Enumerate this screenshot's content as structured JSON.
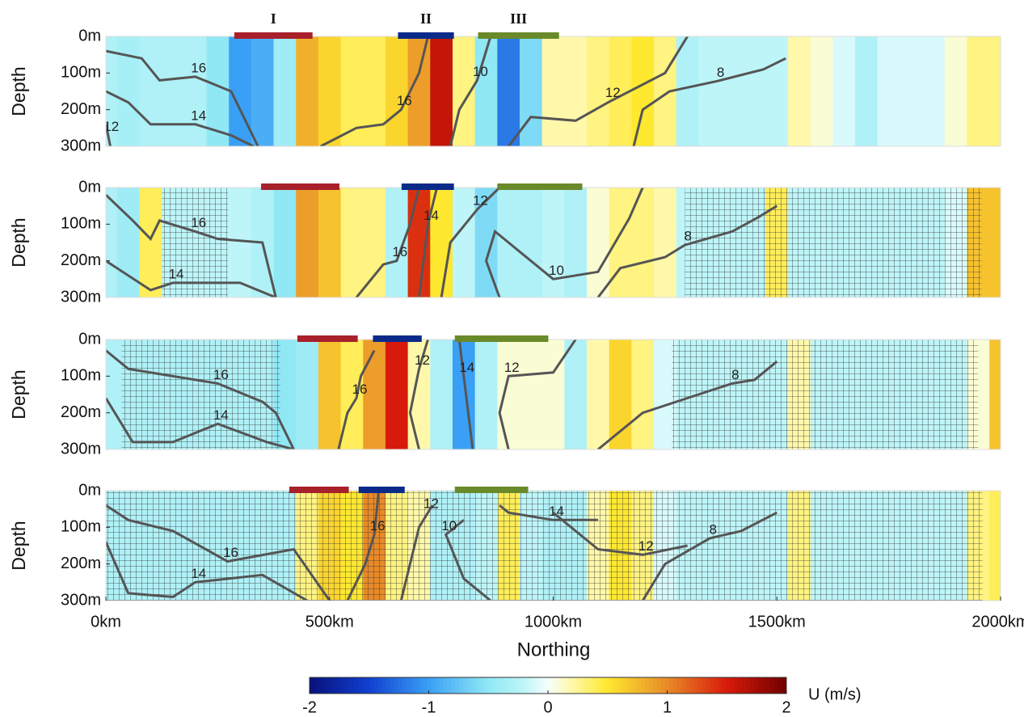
{
  "chart_data": {
    "type": "heatmap",
    "xlabel": "Northing",
    "ylabel": "Depth",
    "xlim": [
      0,
      2000
    ],
    "xticks": [
      {
        "value": 0,
        "label": "0km"
      },
      {
        "value": 500,
        "label": "500km"
      },
      {
        "value": 1000,
        "label": "1000km"
      },
      {
        "value": 1500,
        "label": "1500km"
      },
      {
        "value": 2000,
        "label": "2000km"
      }
    ],
    "ylim": [
      0,
      300
    ],
    "yticks": [
      {
        "value": 0,
        "label": "0m"
      },
      {
        "value": 100,
        "label": "100m"
      },
      {
        "value": 200,
        "label": "200m"
      },
      {
        "value": 300,
        "label": "300m"
      }
    ],
    "colorbar": {
      "label": "U (m/s)",
      "lim": [
        -2,
        2
      ],
      "ticks": [
        -2,
        -1,
        0,
        1,
        2
      ]
    },
    "columns_km": [
      0,
      50,
      100,
      150,
      200,
      250,
      300,
      350,
      400,
      450,
      500,
      550,
      600,
      650,
      700,
      750,
      800,
      850,
      900,
      950,
      1000,
      1050,
      1100,
      1150,
      1200,
      1250,
      1300,
      1350,
      1400,
      1450,
      1500,
      1550,
      1600,
      1650,
      1700,
      1750,
      1800,
      1850,
      1900,
      1950,
      2000
    ],
    "panels": [
      {
        "u": [
          -0.3,
          -0.35,
          -0.3,
          -0.3,
          -0.3,
          -0.5,
          -1.0,
          -0.9,
          -0.4,
          0.8,
          0.6,
          0.4,
          0.4,
          0.6,
          0.9,
          1.6,
          0.3,
          -0.5,
          -1.2,
          -0.6,
          0.2,
          0.2,
          0.3,
          0.4,
          0.5,
          0.3,
          -0.3,
          -0.2,
          -0.2,
          -0.2,
          -0.2,
          0.2,
          0.1,
          -0.1,
          -0.3,
          -0.1,
          -0.1,
          -0.1,
          0.1,
          0.3,
          0.3
        ],
        "hatched": [],
        "segments": [
          {
            "label": "I",
            "color": "#a8202a",
            "x": [
              287,
              462
            ]
          },
          {
            "label": "II",
            "color": "#0a2a8a",
            "x": [
              653,
              778
            ]
          },
          {
            "label": "III",
            "color": "#6a8a2a",
            "x": [
              832,
              1013
            ]
          }
        ],
        "contours": [
          {
            "level": 16,
            "x": [
              0,
              80,
              120,
              200,
              280,
              340
            ],
            "depth": [
              40,
              60,
              120,
              110,
              150,
              300
            ]
          },
          {
            "level": 14,
            "x": [
              0,
              50,
              100,
              200,
              280,
              330
            ],
            "depth": [
              150,
              180,
              240,
              240,
              270,
              300
            ]
          },
          {
            "level": 12,
            "x": [
              0,
              5,
              10
            ],
            "depth": [
              240,
              270,
              300
            ]
          },
          {
            "level": 16,
            "x": [
              480,
              560,
              620,
              660,
              700,
              720
            ],
            "depth": [
              300,
              250,
              240,
              200,
              100,
              0
            ]
          },
          {
            "level": 10,
            "x": [
              770,
              790,
              830,
              860
            ],
            "depth": [
              300,
              200,
              120,
              0
            ]
          },
          {
            "level": 12,
            "x": [
              900,
              950,
              1050,
              1126,
              1250,
              1300
            ],
            "depth": [
              300,
              220,
              230,
              178,
              100,
              0
            ]
          },
          {
            "level": 8,
            "x": [
              1180,
              1200,
              1260,
              1367,
              1470,
              1520
            ],
            "depth": [
              300,
              200,
              150,
              122,
              90,
              60
            ]
          }
        ]
      },
      {
        "u": [
          -0.3,
          -0.4,
          0.4,
          -0.2,
          -0.2,
          -0.2,
          -0.2,
          -0.3,
          -0.5,
          0.9,
          0.7,
          0.3,
          0.3,
          -0.3,
          1.4,
          0.5,
          -0.2,
          -0.6,
          -0.3,
          -0.3,
          -0.2,
          -0.3,
          0.1,
          0.3,
          0.3,
          0.2,
          -0.2,
          -0.2,
          -0.2,
          -0.2,
          0.4,
          -0.2,
          -0.2,
          -0.2,
          -0.2,
          -0.2,
          -0.2,
          -0.2,
          -0.1,
          0.7,
          0.7
        ],
        "hatched": [
          [
            125,
            273
          ],
          [
            1294,
            1957
          ]
        ],
        "segments": [
          {
            "color": "#a8202a",
            "x": [
              347,
              522
            ]
          },
          {
            "color": "#0a2a8a",
            "x": [
              661,
              778
            ]
          },
          {
            "color": "#6a8a2a",
            "x": [
              875,
              1065
            ]
          }
        ],
        "contours": [
          {
            "level": 16,
            "x": [
              0,
              60,
              100,
              120,
              200,
              250,
              350,
              380
            ],
            "depth": [
              20,
              90,
              140,
              90,
              120,
              140,
              150,
              300
            ]
          },
          {
            "level": 14,
            "x": [
              0,
              100,
              150,
              300,
              380
            ],
            "depth": [
              200,
              280,
              260,
              260,
              300
            ]
          },
          {
            "level": 16,
            "x": [
              560,
              620,
              650,
              680,
              700
            ],
            "depth": [
              300,
              210,
              200,
              100,
              0
            ]
          },
          {
            "level": 14,
            "x": [
              700,
              720,
              740
            ],
            "depth": [
              300,
              100,
              0
            ]
          },
          {
            "level": 12,
            "x": [
              750,
              770,
              830,
              880
            ],
            "depth": [
              300,
              150,
              60,
              0
            ]
          },
          {
            "level": 10,
            "x": [
              880,
              850,
              870,
              1000,
              1100,
              1170,
              1200
            ],
            "depth": [
              300,
              200,
              120,
              250,
              230,
              84,
              0
            ]
          },
          {
            "level": 8,
            "x": [
              1100,
              1150,
              1250,
              1294,
              1400,
              1460,
              1500
            ],
            "depth": [
              300,
              220,
              190,
              157,
              120,
              80,
              50
            ]
          }
        ]
      },
      {
        "u": [
          -0.3,
          -0.3,
          -0.3,
          -0.3,
          -0.3,
          -0.3,
          -0.3,
          -0.3,
          -0.5,
          -0.4,
          0.7,
          0.4,
          0.9,
          1.5,
          0.2,
          -0.3,
          -1.0,
          -0.3,
          0.1,
          0.1,
          0.1,
          -0.3,
          0.2,
          0.6,
          0.3,
          -0.1,
          -0.2,
          -0.2,
          -0.2,
          -0.2,
          -0.2,
          0.2,
          -0.2,
          -0.2,
          -0.2,
          -0.2,
          -0.2,
          -0.2,
          -0.2,
          0.1,
          0.7
        ],
        "hatched": [
          [
            35,
            390
          ],
          [
            1265,
            1950
          ]
        ],
        "segments": [
          {
            "color": "#a8202a",
            "x": [
              428,
              563
            ]
          },
          {
            "color": "#0a2a8a",
            "x": [
              597,
              706
            ]
          },
          {
            "color": "#6a8a2a",
            "x": [
              780,
              989
            ]
          }
        ],
        "contours": [
          {
            "level": 16,
            "x": [
              0,
              50,
              200,
              250,
              350,
              380,
              420
            ],
            "depth": [
              30,
              80,
              110,
              120,
              170,
              200,
              300
            ]
          },
          {
            "level": 14,
            "x": [
              0,
              60,
              150,
              250,
              360,
              420
            ],
            "depth": [
              160,
              280,
              280,
              230,
              280,
              300
            ]
          },
          {
            "level": 16,
            "x": [
              520,
              540,
              560,
              570,
              600
            ],
            "depth": [
              300,
              200,
              160,
              100,
              30
            ]
          },
          {
            "level": 12,
            "x": [
              700,
              680,
              700,
              720
            ],
            "depth": [
              300,
              200,
              80,
              0
            ]
          },
          {
            "level": 14,
            "x": [
              790,
              795,
              800,
              820
            ],
            "depth": [
              0,
              50,
              100,
              300
            ]
          },
          {
            "level": 12,
            "x": [
              900,
              880,
              900,
              1000,
              1050
            ],
            "depth": [
              300,
              200,
              100,
              90,
              0
            ]
          },
          {
            "level": 8,
            "x": [
              1100,
              1200,
              1300,
              1400,
              1450,
              1500
            ],
            "depth": [
              300,
              200,
              160,
              120,
              110,
              60
            ]
          }
        ]
      },
      {
        "u": [
          -0.3,
          -0.3,
          -0.3,
          -0.3,
          -0.3,
          -0.3,
          -0.3,
          -0.3,
          -0.3,
          0.3,
          0.6,
          0.5,
          1.0,
          0.3,
          0.2,
          -0.3,
          -0.3,
          -0.2,
          0.4,
          -0.2,
          -0.3,
          -0.3,
          0.2,
          0.5,
          0.3,
          -0.1,
          -0.2,
          -0.2,
          -0.2,
          -0.2,
          -0.2,
          0.3,
          -0.2,
          -0.2,
          -0.2,
          -0.2,
          -0.2,
          -0.2,
          -0.2,
          0.3,
          0.4
        ],
        "hatched": [
          [
            0,
            1960
          ]
        ],
        "segments": [
          {
            "color": "#a8202a",
            "x": [
              410,
              543
            ]
          },
          {
            "color": "#0a2a8a",
            "x": [
              565,
              668
            ]
          },
          {
            "color": "#6a8a2a",
            "x": [
              780,
              944
            ]
          }
        ],
        "contours": [
          {
            "level": 16,
            "x": [
              0,
              50,
              150,
              272,
              420,
              500
            ],
            "depth": [
              40,
              80,
              110,
              193,
              160,
              300
            ]
          },
          {
            "level": 14,
            "x": [
              0,
              50,
              150,
              200,
              350,
              450
            ],
            "depth": [
              140,
              280,
              290,
              250,
              230,
              300
            ]
          },
          {
            "level": 16,
            "x": [
              540,
              580,
              600,
              610
            ],
            "depth": [
              300,
              200,
              120,
              0
            ]
          },
          {
            "level": 12,
            "x": [
              660,
              700,
              720,
              730
            ],
            "depth": [
              300,
              100,
              60,
              40
            ]
          },
          {
            "level": 10,
            "x": [
              860,
              800,
              760,
              800
            ],
            "depth": [
              300,
              240,
              120,
              80
            ]
          },
          {
            "level": 14,
            "x": [
              880,
              900,
              1000,
              1100
            ],
            "depth": [
              40,
              60,
              80,
              80
            ]
          },
          {
            "level": 12,
            "x": [
              1000,
              1100,
              1200,
              1300
            ],
            "depth": [
              60,
              160,
              175,
              150
            ]
          },
          {
            "level": 8,
            "x": [
              1200,
              1250,
              1350,
              1420,
              1500
            ],
            "depth": [
              300,
              200,
              130,
              110,
              60
            ]
          }
        ]
      }
    ]
  }
}
